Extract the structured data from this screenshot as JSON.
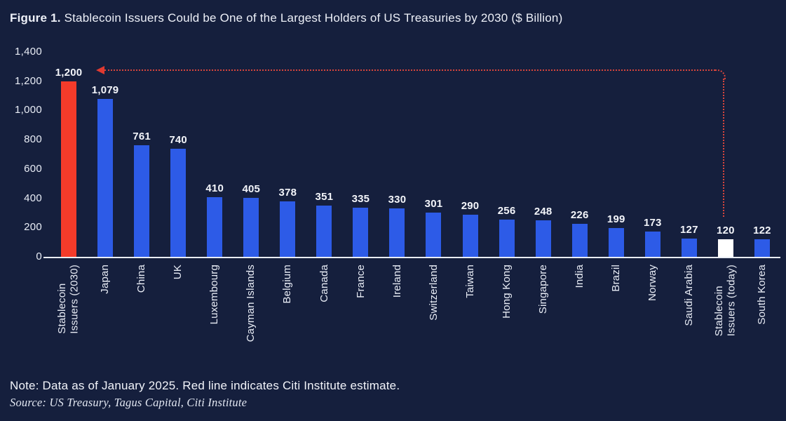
{
  "title": {
    "label": "Figure 1.",
    "rest": "Stablecoin Issuers Could be One of the Largest Holders of US Treasuries by 2030 ($ Billion)"
  },
  "note": "Note: Data as of January 2025. Red line indicates Citi Institute estimate.",
  "source": "Source: US Treasury, Tagus Capital, Citi Institute",
  "colors": {
    "background": "#151F3D",
    "bar_blue": "#2D5BE7",
    "bar_red": "#F43B2A",
    "bar_white": "#FFFFFF",
    "text": "#E9EDF6",
    "axis_line": "#E9EDF5",
    "dotted_line": "#D8453C"
  },
  "chart_data": {
    "type": "bar",
    "title": "Figure 1. Stablecoin Issuers Could be One of the Largest Holders of US Treasuries by 2030 ($ Billion)",
    "categories": [
      "Stablecoin\nIssuers (2030)",
      "Japan",
      "China",
      "UK",
      "Luxembourg",
      "Cayman Islands",
      "Belgium",
      "Canada",
      "France",
      "Ireland",
      "Switzerland",
      "Taiwan",
      "Hong Kong",
      "Singapore",
      "India",
      "Brazil",
      "Norway",
      "Saudi Arabia",
      "Stablecoin\nIssuers (today)",
      "South Korea"
    ],
    "values": [
      1200,
      1079,
      761,
      740,
      410,
      405,
      378,
      351,
      335,
      330,
      301,
      290,
      256,
      248,
      226,
      199,
      173,
      127,
      120,
      122
    ],
    "value_labels": [
      "1,200",
      "1,079",
      "761",
      "740",
      "410",
      "405",
      "378",
      "351",
      "335",
      "330",
      "301",
      "290",
      "256",
      "248",
      "226",
      "199",
      "173",
      "127",
      "120",
      "122"
    ],
    "bar_color_keys": [
      "red",
      "blue",
      "blue",
      "blue",
      "blue",
      "blue",
      "blue",
      "blue",
      "blue",
      "blue",
      "blue",
      "blue",
      "blue",
      "blue",
      "blue",
      "blue",
      "blue",
      "blue",
      "white",
      "blue"
    ],
    "xlabel": "",
    "ylabel": "",
    "ylim": [
      0,
      1400
    ],
    "yticks": [
      "0",
      "200",
      "400",
      "600",
      "800",
      "1,000",
      "1,200",
      "1,400"
    ],
    "grid": false,
    "legend": null,
    "annotation": "Dotted red arrow connects the 1,200 estimate for Stablecoin Issuers (2030) to the Stablecoin Issuers (today) bar; red line indicates Citi Institute estimate"
  }
}
